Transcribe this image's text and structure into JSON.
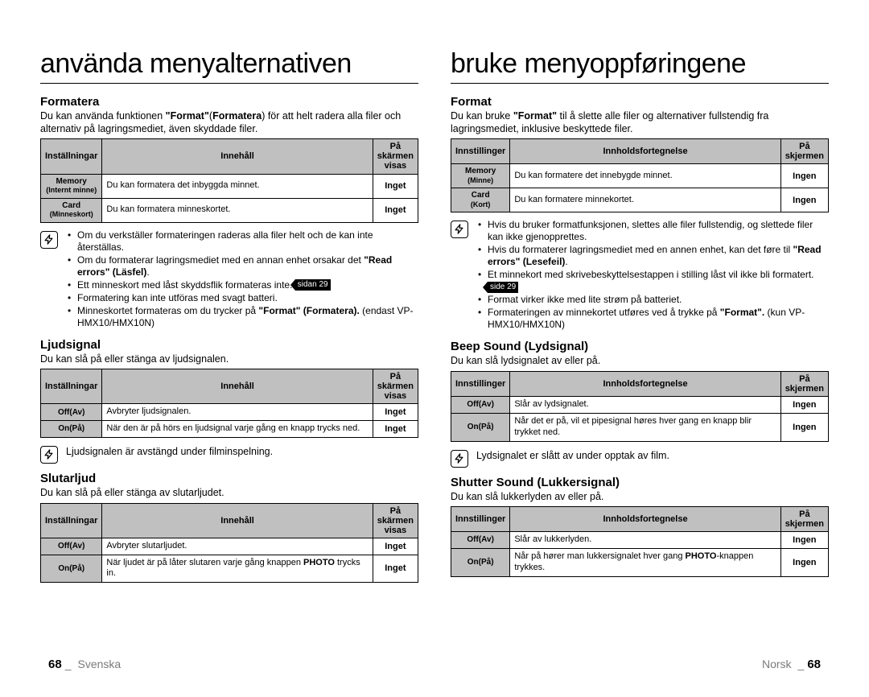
{
  "left": {
    "title": "använda menyalternativen",
    "sections": [
      {
        "heading": "Formatera",
        "intro_html": "Du kan använda funktionen <b>\"Format\"</b>(<b>Formatera</b>) för att helt radera alla filer och alternativ på lagringsmediet, även skyddade filer.",
        "table": {
          "head": [
            "Inställningar",
            "Innehåll",
            "På skärmen visas"
          ],
          "rows": [
            {
              "label_html": "Memory<br><span class='sub'>(Internt minne)</span>",
              "content": "Du kan formatera det inbyggda minnet.",
              "disp": "Inget"
            },
            {
              "label_html": "Card<br><span class='sub'>(Minneskort)</span>",
              "content": "Du kan formatera minneskortet.",
              "disp": "Inget"
            }
          ]
        },
        "notes_html": [
          "Om du verkställer formateringen raderas alla filer helt och de kan inte återställas.",
          "Om du formaterar lagringsmediet med en annan enhet orsakar det <b>\"Read errors\" (Läsfel)</b>.",
          "Ett minneskort med låst skyddsflik formateras inte. <span class='pageref'>sidan 29</span>",
          "Formatering kan inte utföras med svagt batteri.",
          "Minneskortet formateras om du trycker på <b>\"Format\" (Formatera).</b> (endast VP-HMX10/HMX10N)"
        ]
      },
      {
        "heading": "Ljudsignal",
        "intro_html": "Du kan slå på eller stänga av ljudsignalen.",
        "table": {
          "head": [
            "Inställningar",
            "Innehåll",
            "På skärmen visas"
          ],
          "rows": [
            {
              "label_html": "Off(Av)",
              "content": "Avbryter ljudsignalen.",
              "disp": "Inget"
            },
            {
              "label_html": "On(På)",
              "content": "När den är på hörs en ljudsignal varje gång en knapp trycks ned.",
              "disp": "Inget"
            }
          ]
        },
        "single_note": "Ljudsignalen är avstängd under filminspelning."
      },
      {
        "heading": "Slutarljud",
        "intro_html": "Du kan slå på eller stänga av slutarljudet.",
        "table": {
          "head": [
            "Inställningar",
            "Innehåll",
            "På skärmen visas"
          ],
          "rows": [
            {
              "label_html": "Off(Av)",
              "content": "Avbryter slutarljudet.",
              "disp": "Inget"
            },
            {
              "label_html": "On(På)",
              "content_html": "När ljudet är på låter slutaren varje gång knappen <b>PHOTO</b> trycks in.",
              "disp": "Inget"
            }
          ]
        }
      }
    ],
    "footer": {
      "num": "68",
      "lang": "Svenska"
    }
  },
  "right": {
    "title": "bruke menyoppføringene",
    "sections": [
      {
        "heading": "Format",
        "intro_html": "Du kan bruke <b>\"Format\"</b> til å slette alle filer og alternativer fullstendig fra lagringsmediet, inklusive beskyttede filer.",
        "table": {
          "head": [
            "Innstillinger",
            "Innholdsfortegnelse",
            "På skjermen"
          ],
          "rows": [
            {
              "label_html": "Memory<br><span class='sub'>(Minne)</span>",
              "content": "Du kan formatere det innebygde minnet.",
              "disp": "Ingen"
            },
            {
              "label_html": "Card<br><span class='sub'>(Kort)</span>",
              "content": "Du kan formatere minnekortet.",
              "disp": "Ingen"
            }
          ]
        },
        "notes_html": [
          "Hvis du bruker formatfunksjonen, slettes alle filer fullstendig, og slettede filer kan ikke gjenopprettes.",
          "Hvis du formaterer lagringsmediet med en annen enhet, kan det føre til <b>\"Read errors\" (Lesefeil)</b>.",
          "Et minnekort med skrivebeskyttelsestappen i stilling låst vil ikke bli formatert. <span class='pageref'>side 29</span>",
          "Format virker ikke med lite strøm på batteriet.",
          "Formateringen av minnekortet utføres ved å trykke på <b>\"Format\".</b> (kun VP-HMX10/HMX10N)"
        ]
      },
      {
        "heading": "Beep Sound (Lydsignal)",
        "intro_html": "Du kan slå lydsignalet av eller på.",
        "table": {
          "head": [
            "Innstillinger",
            "Innholdsfortegnelse",
            "På skjermen"
          ],
          "rows": [
            {
              "label_html": "Off(Av)",
              "content": "Slår av lydsignalet.",
              "disp": "Ingen"
            },
            {
              "label_html": "On(På)",
              "content": "Når det er på, vil et pipesignal høres hver gang en knapp blir trykket ned.",
              "disp": "Ingen"
            }
          ]
        },
        "single_note": "Lydsignalet er slått av under opptak av film."
      },
      {
        "heading": "Shutter Sound (Lukkersignal)",
        "intro_html": "Du kan slå lukkerlyden av eller på.",
        "table": {
          "head": [
            "Innstillinger",
            "Innholdsfortegnelse",
            "På skjermen"
          ],
          "rows": [
            {
              "label_html": "Off(Av)",
              "content": "Slår av lukkerlyden.",
              "disp": "Ingen"
            },
            {
              "label_html": "On(På)",
              "content_html": "Når på hører man lukkersignalet hver gang <b>PHOTO</b>-knappen trykkes.",
              "disp": "Ingen"
            }
          ]
        }
      }
    ],
    "footer": {
      "num": "68",
      "lang": "Norsk"
    }
  }
}
